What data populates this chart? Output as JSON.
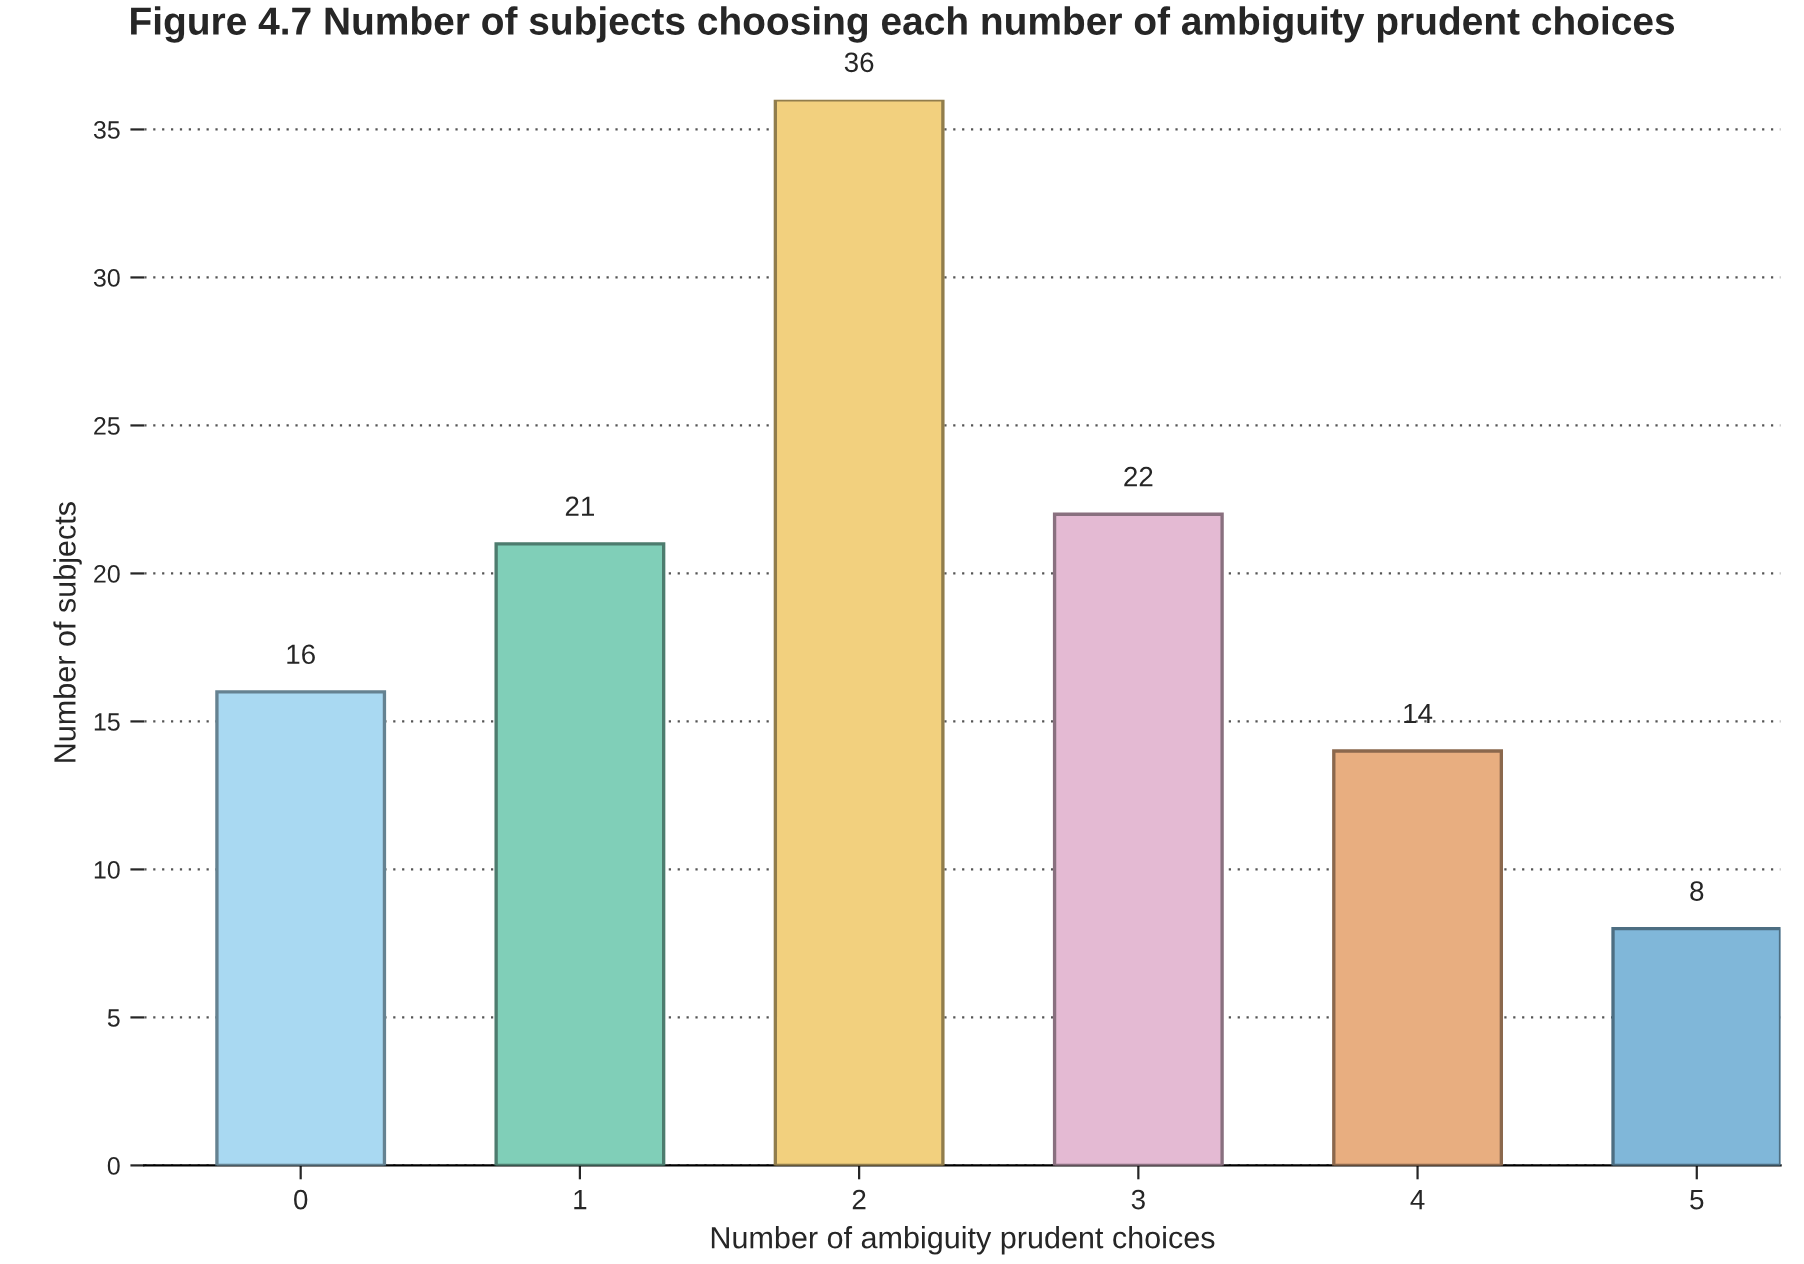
{
  "chart_data": {
    "type": "bar",
    "title": "Figure 4.7 Number of subjects choosing each number of ambiguity prudent choices",
    "xlabel": "Number of ambiguity prudent choices",
    "ylabel": "Number of subjects",
    "categories": [
      "0",
      "1",
      "2",
      "3",
      "4",
      "5"
    ],
    "values": [
      16,
      21,
      36,
      22,
      14,
      8
    ],
    "colors": [
      "#a9d9f2",
      "#80cfb8",
      "#f2d07e",
      "#e4bad3",
      "#e8ae80",
      "#80b7d9"
    ],
    "ylim": [
      0,
      36
    ],
    "yticks": [
      0,
      5,
      10,
      15,
      20,
      25,
      30,
      35
    ],
    "grid": "y",
    "data_labels": true
  }
}
